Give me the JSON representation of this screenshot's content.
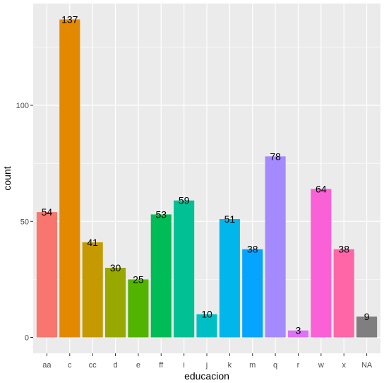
{
  "chart_data": {
    "type": "bar",
    "xlabel": "educacion",
    "ylabel": "count",
    "categories": [
      "aa",
      "c",
      "cc",
      "d",
      "e",
      "ff",
      "i",
      "j",
      "k",
      "m",
      "q",
      "r",
      "w",
      "x",
      "NA"
    ],
    "values": [
      54,
      137,
      41,
      30,
      25,
      53,
      59,
      10,
      51,
      38,
      78,
      3,
      64,
      38,
      9
    ],
    "colors": [
      "#F8766D",
      "#E38900",
      "#C49A00",
      "#99A800",
      "#53B400",
      "#00BC56",
      "#00C094",
      "#00BFC4",
      "#00B6EB",
      "#06A4FF",
      "#A58AFF",
      "#DF70F8",
      "#FB61D7",
      "#FF66A8",
      "#7F7F7F"
    ],
    "y_ticks": [
      0,
      50,
      100
    ],
    "ylim": [
      -6.85,
      143.85
    ],
    "grid": true,
    "legend": "none",
    "panel_background": "#EBEBEB",
    "grid_color": "#FFFFFF"
  }
}
